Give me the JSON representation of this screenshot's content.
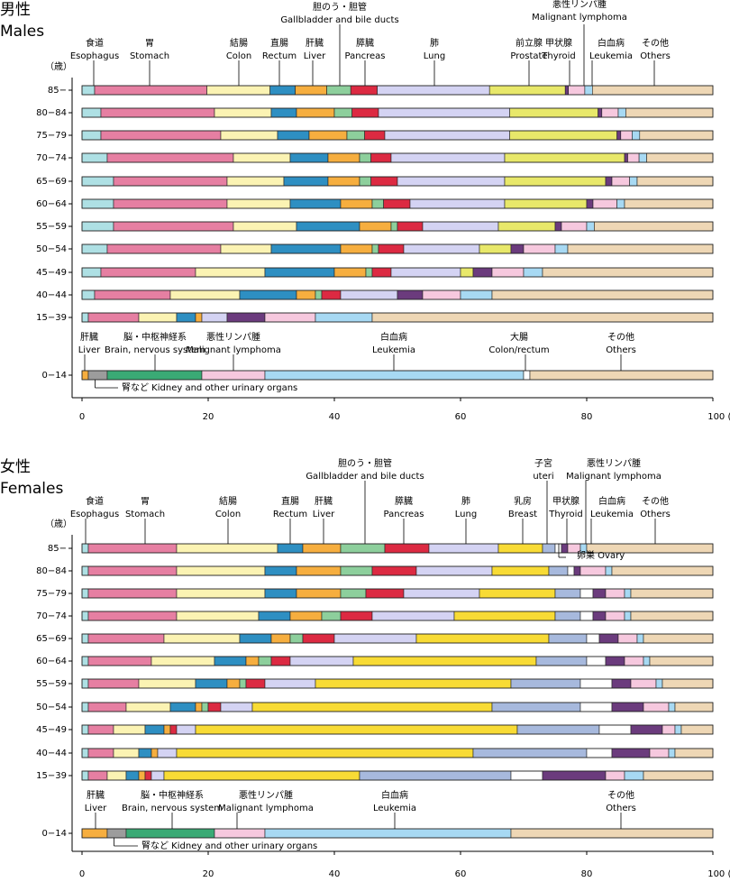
{
  "colors": {
    "esophagus": "#aee0e4",
    "stomach": "#e67fa2",
    "colon": "#fbf3b3",
    "rectum": "#2e8fc2",
    "liver": "#f6ae3f",
    "gallbladder": "#8dcf9c",
    "pancreas": "#dc2a42",
    "lung": "#d4d3f3",
    "prostate": "#e8e86a",
    "thyroid": "#6b3b7d",
    "lymphoma": "#f6c8de",
    "leukemia": "#a7d9f3",
    "others": "#eed7b5",
    "breast": "#f8db35",
    "uterus": "#a7b9dd",
    "ovary": "#ffffff",
    "kidney": "#9c9c9c",
    "brain": "#3aaa75",
    "colon_rectum": "#ffffff"
  },
  "chart_data": [
    {
      "type": "bar",
      "orientation": "horizontal-stacked-100",
      "title_ja": "男性",
      "title_en": "Males",
      "y_unit": "（歳）",
      "xlim": [
        0,
        100
      ],
      "x_ticks": [
        "0",
        "20",
        "40",
        "60",
        "80",
        "100 (%)"
      ],
      "series": [
        {
          "key": "esophagus",
          "ja": "食道",
          "en": "Esophagus"
        },
        {
          "key": "stomach",
          "ja": "胃",
          "en": "Stomach"
        },
        {
          "key": "colon",
          "ja": "結腸",
          "en": "Colon"
        },
        {
          "key": "rectum",
          "ja": "直腸",
          "en": "Rectum"
        },
        {
          "key": "liver",
          "ja": "肝臓",
          "en": "Liver"
        },
        {
          "key": "gallbladder",
          "ja": "胆のう・胆管",
          "en": "Gallbladder and bile ducts"
        },
        {
          "key": "pancreas",
          "ja": "膵臓",
          "en": "Pancreas"
        },
        {
          "key": "lung",
          "ja": "肺",
          "en": "Lung"
        },
        {
          "key": "prostate",
          "ja": "前立腺",
          "en": "Prostate"
        },
        {
          "key": "thyroid",
          "ja": "甲状腺",
          "en": "Thyroid"
        },
        {
          "key": "lymphoma",
          "ja": "悪性リンパ腫",
          "en": "Malignant lymphoma"
        },
        {
          "key": "leukemia",
          "ja": "白血病",
          "en": "Leukemia"
        },
        {
          "key": "others",
          "ja": "その他",
          "en": "Others"
        }
      ],
      "groups": [
        {
          "age": "85−",
          "values": [
            2.0,
            17.8,
            10.0,
            4.0,
            5.0,
            3.8,
            4.2,
            17.8,
            12.0,
            0.5,
            2.6,
            1.2,
            19.1
          ]
        },
        {
          "age": "80−84",
          "values": [
            3.0,
            18.0,
            9.0,
            4.0,
            6.0,
            2.8,
            4.2,
            20.8,
            14.0,
            0.6,
            2.6,
            1.2,
            13.8
          ]
        },
        {
          "age": "75−79",
          "values": [
            3.0,
            19.0,
            9.0,
            5.0,
            6.0,
            2.8,
            3.2,
            19.8,
            17.0,
            0.6,
            1.8,
            1.2,
            11.6
          ]
        },
        {
          "age": "70−74",
          "values": [
            4.0,
            20.0,
            9.0,
            6.0,
            5.0,
            1.8,
            3.2,
            18.0,
            19.0,
            0.5,
            1.8,
            1.2,
            10.5
          ]
        },
        {
          "age": "65−69",
          "values": [
            5.0,
            18.0,
            9.0,
            7.0,
            5.0,
            1.8,
            4.2,
            17.0,
            16.0,
            1.0,
            2.8,
            1.2,
            12.0
          ]
        },
        {
          "age": "60−64",
          "values": [
            5.0,
            18.0,
            10.0,
            8.0,
            5.0,
            1.8,
            4.2,
            15.0,
            13.0,
            1.0,
            3.8,
            1.2,
            14.0
          ]
        },
        {
          "age": "55−59",
          "values": [
            5.0,
            19.0,
            10.0,
            10.0,
            5.0,
            1.0,
            4.0,
            12.0,
            9.0,
            1.0,
            4.0,
            1.2,
            18.8
          ]
        },
        {
          "age": "50−54",
          "values": [
            4.0,
            18.0,
            8.0,
            11.0,
            5.0,
            1.0,
            4.0,
            12.0,
            5.0,
            2.0,
            5.0,
            2.0,
            23.0
          ]
        },
        {
          "age": "45−49",
          "values": [
            3.0,
            15.0,
            11.0,
            11.0,
            5.0,
            1.0,
            3.0,
            11.0,
            2.0,
            3.0,
            5.0,
            3.0,
            27.0
          ]
        },
        {
          "age": "40−44",
          "values": [
            2.0,
            12.0,
            11.0,
            9.0,
            3.0,
            1.0,
            3.0,
            9.0,
            0.0,
            4.0,
            6.0,
            5.0,
            35.0
          ]
        },
        {
          "age": "15−39",
          "values": [
            1.0,
            8.0,
            6.0,
            3.0,
            1.0,
            0.0,
            0.0,
            4.0,
            0.0,
            6.0,
            8.0,
            9.0,
            54.0
          ]
        }
      ],
      "child_series": [
        {
          "key": "liver",
          "ja": "肝臓",
          "en": "Liver"
        },
        {
          "key": "kidney",
          "ja": "腎など",
          "en": "Kidney and other urinary organs"
        },
        {
          "key": "brain",
          "ja": "脳・中枢神経系",
          "en": "Brain, nervous system"
        },
        {
          "key": "lymphoma",
          "ja": "悪性リンパ腫",
          "en": "Malignant lymphoma"
        },
        {
          "key": "leukemia",
          "ja": "白血病",
          "en": "Leukemia"
        },
        {
          "key": "colon_rectum",
          "ja": "大腸",
          "en": "Colon/rectum"
        },
        {
          "key": "others",
          "ja": "その他",
          "en": "Others"
        }
      ],
      "child_group": {
        "age": "0−14",
        "values": [
          1.0,
          3.0,
          15.0,
          10.0,
          41.0,
          1.0,
          29.0
        ]
      }
    },
    {
      "type": "bar",
      "orientation": "horizontal-stacked-100",
      "title_ja": "女性",
      "title_en": "Females",
      "y_unit": "（歳）",
      "xlim": [
        0,
        100
      ],
      "x_ticks": [
        "0",
        "20",
        "40",
        "60",
        "80",
        "100 (%)"
      ],
      "series": [
        {
          "key": "esophagus",
          "ja": "食道",
          "en": "Esophagus"
        },
        {
          "key": "stomach",
          "ja": "胃",
          "en": "Stomach"
        },
        {
          "key": "colon",
          "ja": "結腸",
          "en": "Colon"
        },
        {
          "key": "rectum",
          "ja": "直腸",
          "en": "Rectum"
        },
        {
          "key": "liver",
          "ja": "肝臓",
          "en": "Liver"
        },
        {
          "key": "gallbladder",
          "ja": "胆のう・胆管",
          "en": "Gallbladder and bile ducts"
        },
        {
          "key": "pancreas",
          "ja": "膵臓",
          "en": "Pancreas"
        },
        {
          "key": "lung",
          "ja": "肺",
          "en": "Lung"
        },
        {
          "key": "breast",
          "ja": "乳房",
          "en": "Breast"
        },
        {
          "key": "uterus",
          "ja": "子宮",
          "en": "uteri"
        },
        {
          "key": "ovary",
          "ja": "卵巣",
          "en": "Ovary"
        },
        {
          "key": "thyroid",
          "ja": "甲状腺",
          "en": "Thyroid"
        },
        {
          "key": "lymphoma",
          "ja": "悪性リンパ腫",
          "en": "Malignant lymphoma"
        },
        {
          "key": "leukemia",
          "ja": "白血病",
          "en": "Leukemia"
        },
        {
          "key": "others",
          "ja": "その他",
          "en": "Others"
        }
      ],
      "groups": [
        {
          "age": "85−",
          "values": [
            1.0,
            14.0,
            16.0,
            4.0,
            6.0,
            7.0,
            7.0,
            11.0,
            7.0,
            2.0,
            1.0,
            1.0,
            2.0,
            1.0,
            20.0
          ]
        },
        {
          "age": "80−84",
          "values": [
            1.0,
            14.0,
            14.0,
            5.0,
            7.0,
            5.0,
            7.0,
            12.0,
            9.0,
            3.0,
            1.0,
            1.0,
            4.0,
            1.0,
            16.0
          ]
        },
        {
          "age": "75−79",
          "values": [
            1.0,
            14.0,
            14.0,
            5.0,
            7.0,
            4.0,
            6.0,
            12.0,
            12.0,
            4.0,
            2.0,
            2.0,
            3.0,
            1.0,
            13.0
          ]
        },
        {
          "age": "70−74",
          "values": [
            1.0,
            14.0,
            13.0,
            5.0,
            5.0,
            3.0,
            5.0,
            13.0,
            16.0,
            4.0,
            2.0,
            2.0,
            3.0,
            1.0,
            13.0
          ]
        },
        {
          "age": "65−69",
          "values": [
            1.0,
            12.0,
            12.0,
            5.0,
            3.0,
            2.0,
            5.0,
            13.0,
            21.0,
            6.0,
            2.0,
            3.0,
            3.0,
            1.0,
            11.0
          ]
        },
        {
          "age": "60−64",
          "values": [
            1.0,
            10.0,
            10.0,
            5.0,
            2.0,
            2.0,
            3.0,
            10.0,
            29.0,
            8.0,
            3.0,
            3.0,
            3.0,
            1.0,
            10.0
          ]
        },
        {
          "age": "55−59",
          "values": [
            1.0,
            8.0,
            9.0,
            5.0,
            2.0,
            1.0,
            3.0,
            8.0,
            31.0,
            11.0,
            5.0,
            3.0,
            4.0,
            1.0,
            8.0
          ]
        },
        {
          "age": "50−54",
          "values": [
            1.0,
            6.0,
            7.0,
            4.0,
            1.0,
            1.0,
            2.0,
            5.0,
            38.0,
            14.0,
            5.0,
            5.0,
            4.0,
            1.0,
            6.0
          ]
        },
        {
          "age": "45−49",
          "values": [
            1.0,
            4.0,
            5.0,
            3.0,
            1.0,
            0.0,
            1.0,
            3.0,
            51.0,
            13.0,
            5.0,
            5.0,
            2.0,
            1.0,
            5.0
          ]
        },
        {
          "age": "40−44",
          "values": [
            1.0,
            4.0,
            4.0,
            2.0,
            1.0,
            0.0,
            0.0,
            3.0,
            47.0,
            18.0,
            4.0,
            6.0,
            3.0,
            1.0,
            6.0
          ]
        },
        {
          "age": "15−39",
          "values": [
            1.0,
            3.0,
            3.0,
            2.0,
            1.0,
            0.0,
            1.0,
            2.0,
            31.0,
            24.0,
            5.0,
            10.0,
            3.0,
            3.0,
            11.0
          ]
        }
      ],
      "child_series": [
        {
          "key": "liver",
          "ja": "肝臓",
          "en": "Liver"
        },
        {
          "key": "kidney",
          "ja": "腎など",
          "en": "Kidney and other urinary organs"
        },
        {
          "key": "brain",
          "ja": "脳・中枢神経系",
          "en": "Brain, nervous system"
        },
        {
          "key": "lymphoma",
          "ja": "悪性リンパ腫",
          "en": "Malignant lymphoma"
        },
        {
          "key": "leukemia",
          "ja": "白血病",
          "en": "Leukemia"
        },
        {
          "key": "others",
          "ja": "その他",
          "en": "Others"
        }
      ],
      "child_group": {
        "age": "0−14",
        "values": [
          4.0,
          3.0,
          14.0,
          8.0,
          39.0,
          32.0
        ]
      }
    }
  ]
}
